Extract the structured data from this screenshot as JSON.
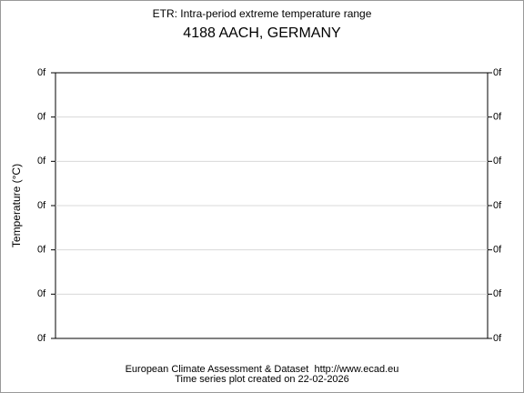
{
  "chart_data": {
    "type": "line",
    "title": "ETR: Intra-period extreme temperature range",
    "subtitle": "4188 AACH, GERMANY",
    "ylabel": "Temperature (°C)",
    "footer": [
      "European Climate Assessment & Dataset  http://www.ecad.eu",
      "Time series plot created on 22-02-2026"
    ],
    "ylim": [
      0,
      6
    ],
    "yticks": [
      {
        "value": 0,
        "label": "0f"
      },
      {
        "value": 1,
        "label": "0f"
      },
      {
        "value": 2,
        "label": "0f"
      },
      {
        "value": 3,
        "label": "0f"
      },
      {
        "value": 4,
        "label": "0f"
      },
      {
        "value": 5,
        "label": "0f"
      },
      {
        "value": 6,
        "label": "0f"
      }
    ],
    "grid": true
  }
}
